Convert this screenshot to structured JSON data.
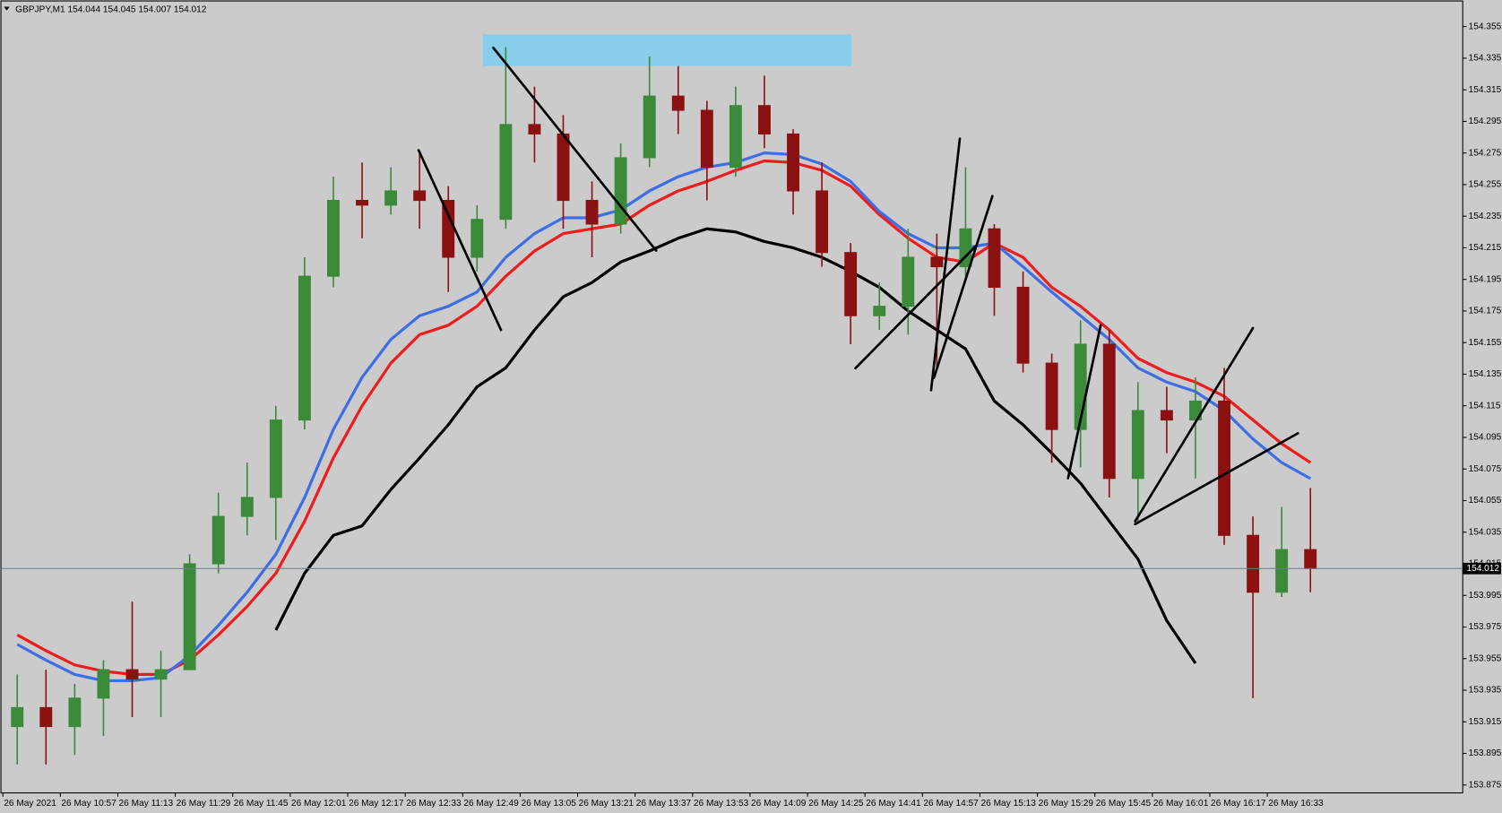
{
  "chart_data": {
    "type": "candlestick",
    "title": "GBPJPY,M1  154.044 154.045 154.007 154.012",
    "categories": [
      "26 May 2021",
      null,
      "26 May 10:57",
      null,
      "26 May 11:13",
      null,
      "26 May 11:29",
      null,
      "26 May 11:45",
      null,
      "26 May 12:01",
      null,
      "26 May 12:17",
      null,
      "26 May 12:33",
      null,
      "26 May 12:49",
      null,
      "26 May 13:05",
      null,
      "26 May 13:21",
      null,
      "26 May 13:37",
      null,
      "26 May 13:53",
      null,
      "26 May 14:09",
      null,
      "26 May 14:25",
      null,
      "26 May 14:41",
      null,
      "26 May 14:57",
      null,
      "26 May 15:13",
      null,
      "26 May 15:29",
      null,
      "26 May 15:45",
      null,
      "26 May 16:01",
      null,
      "26 May 16:17",
      null,
      "26 May 16:33",
      null
    ],
    "open": [
      153.912,
      153.924,
      153.912,
      153.93,
      153.948,
      153.942,
      153.948,
      154.015,
      154.045,
      154.057,
      154.106,
      154.197,
      154.245,
      154.242,
      154.251,
      154.245,
      154.209,
      154.233,
      154.293,
      154.287,
      154.245,
      154.23,
      154.272,
      154.311,
      154.302,
      154.266,
      154.305,
      154.287,
      154.251,
      154.212,
      154.172,
      154.178,
      154.209,
      154.203,
      154.227,
      154.19,
      154.142,
      154.1,
      154.154,
      154.069,
      154.112,
      154.106,
      154.118,
      154.033,
      153.997,
      154.024
    ],
    "high": [
      153.945,
      153.948,
      153.939,
      153.954,
      153.991,
      153.96,
      154.021,
      154.06,
      154.079,
      154.115,
      154.209,
      154.26,
      154.269,
      154.266,
      154.275,
      154.254,
      154.242,
      154.342,
      154.317,
      154.299,
      154.257,
      154.281,
      154.336,
      154.33,
      154.308,
      154.317,
      154.324,
      154.29,
      154.269,
      154.218,
      154.193,
      154.227,
      154.224,
      154.266,
      154.23,
      154.2,
      154.148,
      154.169,
      154.163,
      154.13,
      154.127,
      154.133,
      154.139,
      154.045,
      154.051,
      154.063
    ],
    "low": [
      153.888,
      153.888,
      153.894,
      153.906,
      153.918,
      153.918,
      153.948,
      154.009,
      154.033,
      154.03,
      154.1,
      154.19,
      154.221,
      154.236,
      154.227,
      154.187,
      154.2,
      154.227,
      154.269,
      154.227,
      154.209,
      154.224,
      154.266,
      154.287,
      154.245,
      154.26,
      154.278,
      154.236,
      154.203,
      154.154,
      154.163,
      154.16,
      154.139,
      154.197,
      154.172,
      154.136,
      154.079,
      154.076,
      154.057,
      154.042,
      154.085,
      154.069,
      154.027,
      153.93,
      153.994,
      153.997
    ],
    "close": [
      153.924,
      153.912,
      153.93,
      153.948,
      153.942,
      153.948,
      154.015,
      154.045,
      154.057,
      154.106,
      154.197,
      154.245,
      154.242,
      154.251,
      154.245,
      154.209,
      154.233,
      154.293,
      154.287,
      154.245,
      154.23,
      154.272,
      154.311,
      154.302,
      154.266,
      154.305,
      154.287,
      154.251,
      154.212,
      154.172,
      154.178,
      154.209,
      154.203,
      154.227,
      154.19,
      154.142,
      154.1,
      154.154,
      154.069,
      154.112,
      154.106,
      154.118,
      154.033,
      153.997,
      154.024,
      154.012
    ],
    "up_color": "#3a8a3a",
    "down_color": "#8b1010",
    "lines": [
      {
        "color": "#000000",
        "values": [
          null,
          null,
          null,
          null,
          null,
          null,
          null,
          null,
          null,
          153.973,
          154.009,
          154.033,
          154.039,
          154.062,
          154.082,
          154.103,
          154.127,
          154.139,
          154.163,
          154.184,
          154.193,
          154.206,
          154.213,
          154.221,
          154.227,
          154.225,
          154.219,
          154.215,
          154.209,
          154.2,
          154.19,
          154.175,
          154.163,
          154.151,
          154.118,
          154.103,
          154.085,
          154.066,
          154.042,
          154.018,
          153.979,
          153.952,
          null,
          null,
          null,
          null
        ]
      },
      {
        "color": "#ee1c1c",
        "values": [
          153.97,
          153.96,
          153.951,
          153.947,
          153.945,
          153.945,
          153.954,
          153.97,
          153.988,
          154.009,
          154.042,
          154.082,
          154.115,
          154.142,
          154.16,
          154.166,
          154.178,
          154.197,
          154.213,
          154.224,
          154.227,
          154.23,
          154.242,
          154.251,
          154.257,
          154.264,
          154.27,
          154.269,
          154.264,
          154.254,
          154.236,
          154.221,
          154.209,
          154.206,
          154.218,
          154.209,
          154.19,
          154.178,
          154.163,
          154.145,
          154.136,
          154.13,
          154.121,
          154.106,
          154.091,
          154.079
        ]
      },
      {
        "color": "#3d6ee6",
        "values": [
          153.964,
          153.954,
          153.945,
          153.941,
          153.941,
          153.943,
          153.957,
          153.976,
          153.997,
          154.021,
          154.057,
          154.1,
          154.133,
          154.157,
          154.172,
          154.178,
          154.187,
          154.209,
          154.224,
          154.234,
          154.234,
          154.239,
          154.251,
          154.26,
          154.266,
          154.269,
          154.275,
          154.274,
          154.268,
          154.257,
          154.238,
          154.224,
          154.215,
          154.215,
          154.218,
          154.203,
          154.187,
          154.172,
          154.157,
          154.139,
          154.13,
          154.124,
          154.112,
          154.094,
          154.079,
          154.069
        ]
      }
    ],
    "ylim": [
      153.87,
      154.37
    ],
    "yticks": [
      153.875,
      153.895,
      153.915,
      153.935,
      153.955,
      153.975,
      153.995,
      154.015,
      154.035,
      154.055,
      154.075,
      154.095,
      154.115,
      154.135,
      154.155,
      154.175,
      154.195,
      154.215,
      154.235,
      154.255,
      154.275,
      154.295,
      154.315,
      154.335,
      154.355
    ],
    "current_price": 154.012,
    "background": "#cbcbcb"
  }
}
